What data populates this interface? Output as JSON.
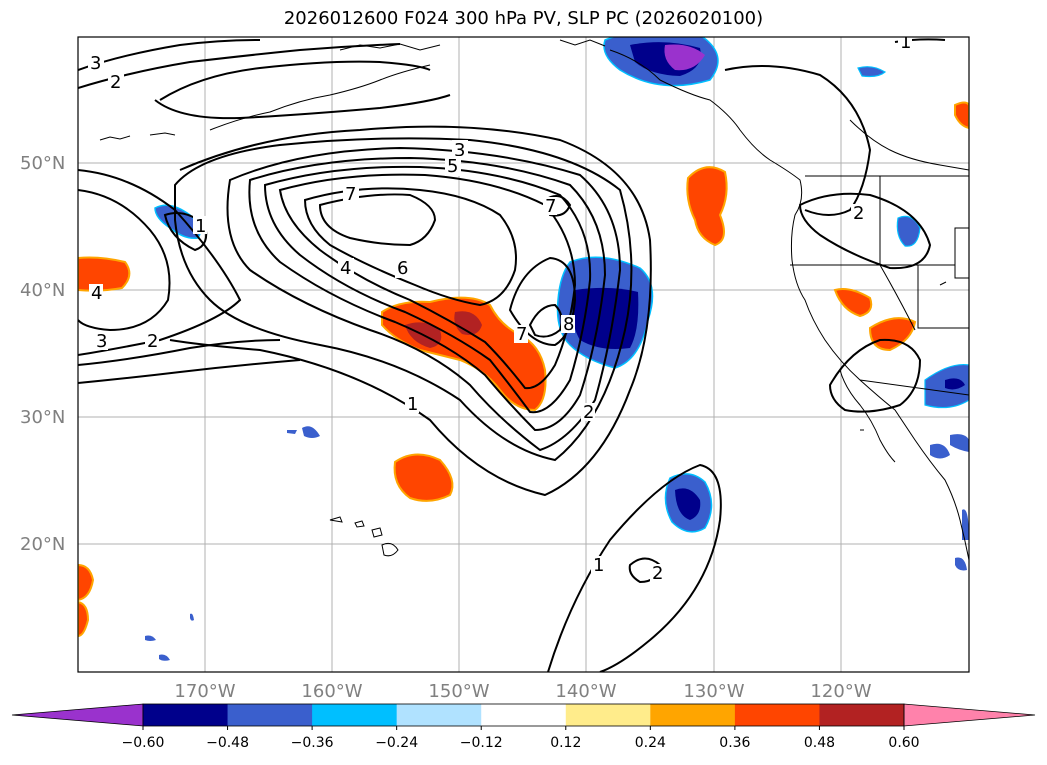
{
  "title": "2026012600 F024 300 hPa PV, SLP PC (2026020100)",
  "lat_labels": [
    "50°N",
    "40°N",
    "30°N",
    "20°N"
  ],
  "lon_labels": [
    "170°W",
    "160°W",
    "150°W",
    "140°W",
    "130°W",
    "120°W"
  ],
  "colorbar": {
    "ticks": [
      "−0.60",
      "−0.48",
      "−0.36",
      "−0.24",
      "−0.12",
      "0.12",
      "0.24",
      "0.36",
      "0.48",
      "0.60"
    ],
    "colors": [
      "#9a32cd",
      "#00008b",
      "#3a5fcd",
      "#00bfff",
      "#b0e2ff",
      "#ffffff",
      "#ffec8b",
      "#ffa500",
      "#ff4500",
      "#b22222",
      "#ff82ab"
    ]
  },
  "contour_labels": [
    "3",
    "2",
    "3",
    "5",
    "7",
    "7",
    "1",
    "4",
    "6",
    "7",
    "8",
    "4",
    "3",
    "2",
    "1",
    "2",
    "1",
    "2",
    "2",
    "1"
  ]
}
